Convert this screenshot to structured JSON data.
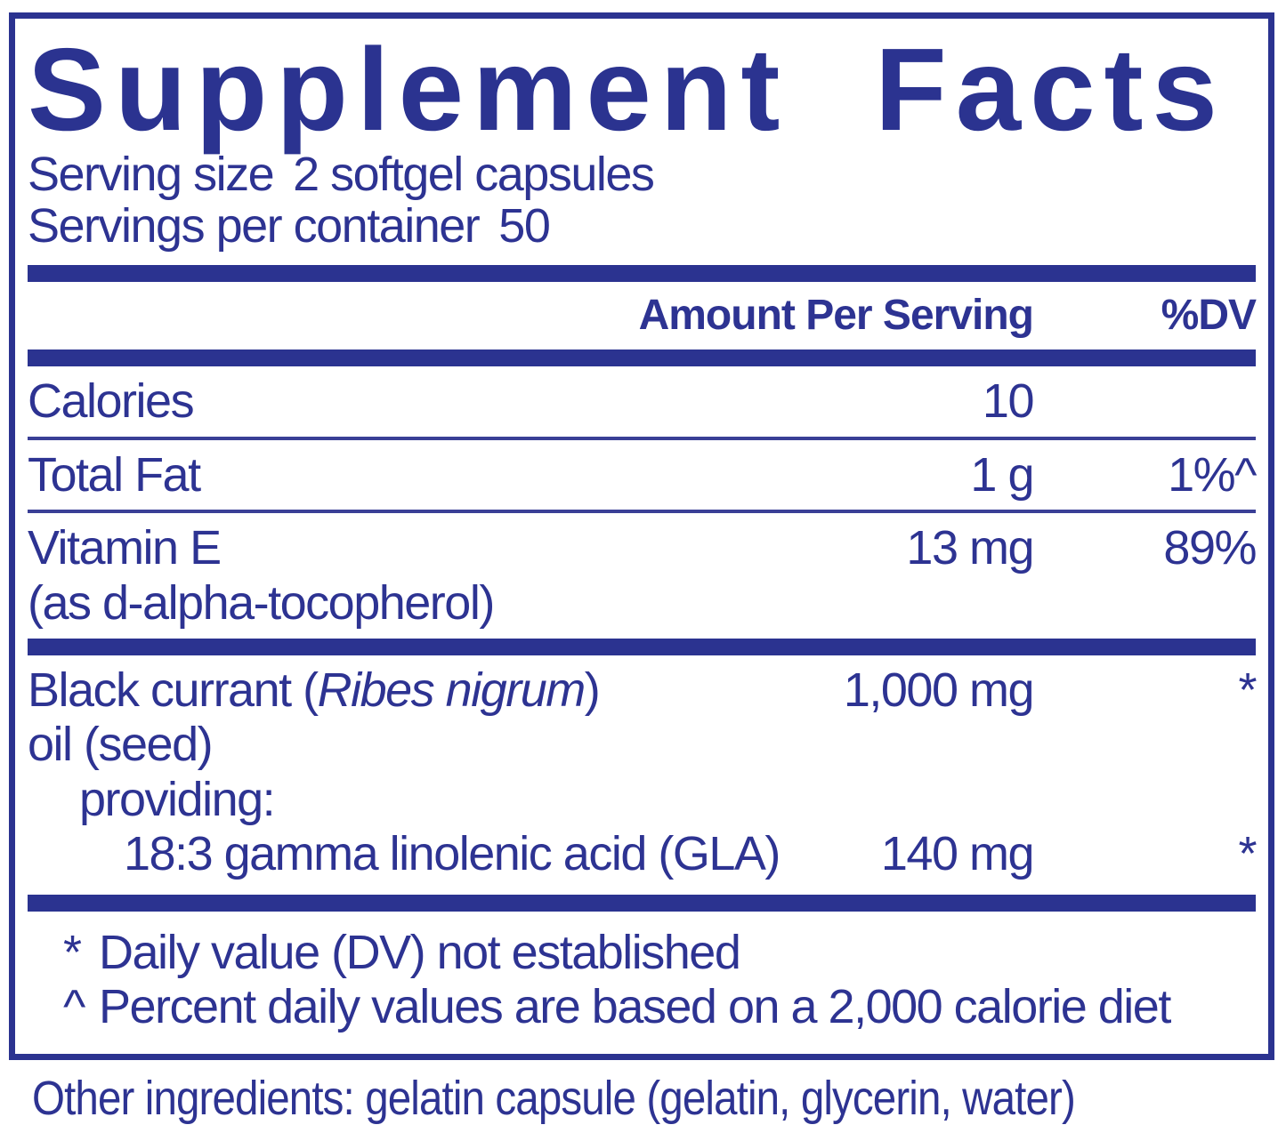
{
  "panel": {
    "title": "Supplement Facts",
    "serving_size": {
      "label": "Serving size",
      "value": "2 softgel capsules"
    },
    "servings_per_container": {
      "label": "Servings per container",
      "value": "50"
    },
    "columns": {
      "amount": "Amount Per Serving",
      "dv": "%DV"
    },
    "nutrients": [
      {
        "name": "Calories",
        "amount": "10",
        "dv": ""
      },
      {
        "name": "Total Fat",
        "amount": "1 g",
        "dv": "1%^"
      },
      {
        "name": "Vitamin E",
        "name_note": "(as d-alpha-tocopherol)",
        "amount": "13 mg",
        "dv": "89%"
      }
    ],
    "blend": {
      "name_prefix": "Black currant (",
      "name_species": "Ribes nigrum",
      "name_suffix": ")",
      "name_line2": "oil (seed)",
      "amount": "1,000 mg",
      "dv": "*",
      "providing_label": "providing:",
      "components": [
        {
          "name": "18:3 gamma linolenic acid (GLA)",
          "amount": "140 mg",
          "dv": "*"
        }
      ]
    },
    "footnotes": [
      {
        "marker": "*",
        "text": "Daily value (DV) not established"
      },
      {
        "marker": "^",
        "text": "Percent daily values are based on a 2,000 calorie diet"
      }
    ],
    "other_ingredients": "Other ingredients: gelatin capsule (gelatin, glycerin, water)"
  },
  "colors": {
    "navy": "#2B3390",
    "separator": "#3A3F96",
    "background": "#FFFFFF"
  }
}
